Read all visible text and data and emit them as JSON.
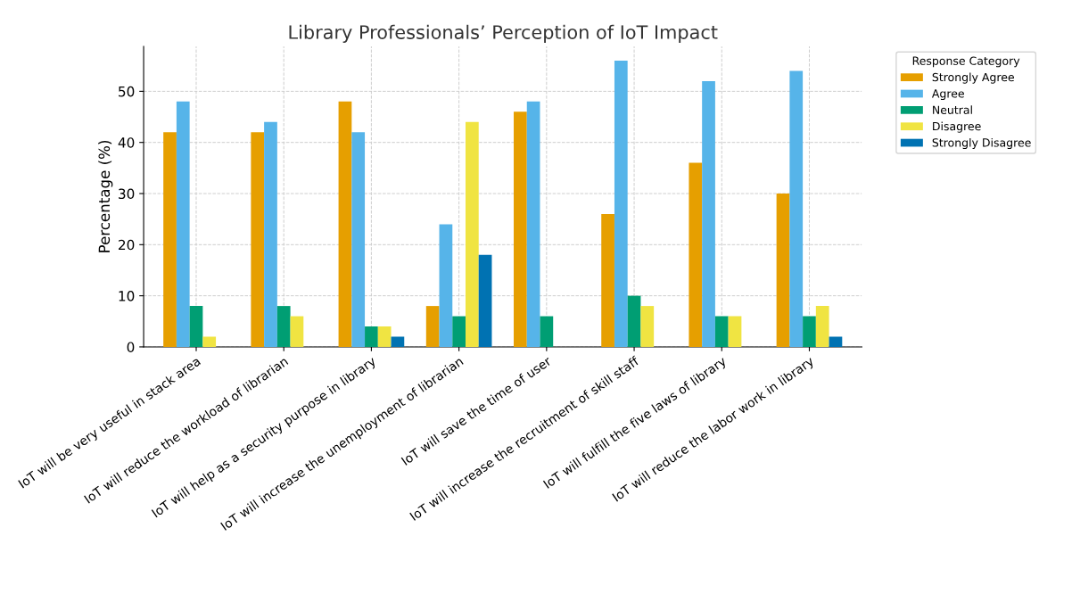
{
  "chart_data": {
    "type": "bar",
    "title": "Library Professionals’ Perception of IoT Impact",
    "ylabel": "Percentage (%)",
    "legend_title": "Response Category",
    "categories": [
      "IoT will be very useful in stack area",
      "IoT will reduce the workload of librarian",
      "IoT will help as a security purpose in library",
      "IoT will increase the unemployment of librarian",
      "IoT will save the time of user",
      "IoT will increase the recruitment of skill staff",
      "IoT will fulfill the five laws of library",
      "IoT will reduce the labor work in library"
    ],
    "series": [
      {
        "name": "Strongly Agree",
        "color": "#e69f00",
        "values": [
          42,
          42,
          48,
          8,
          46,
          26,
          36,
          30
        ]
      },
      {
        "name": "Agree",
        "color": "#56b4e9",
        "values": [
          48,
          44,
          42,
          24,
          48,
          56,
          52,
          54
        ]
      },
      {
        "name": "Neutral",
        "color": "#009e73",
        "values": [
          8,
          8,
          4,
          6,
          6,
          10,
          6,
          6
        ]
      },
      {
        "name": "Disagree",
        "color": "#f0e442",
        "values": [
          2,
          6,
          4,
          44,
          null,
          8,
          6,
          8
        ]
      },
      {
        "name": "Strongly Disagree",
        "color": "#0072b2",
        "values": [
          null,
          null,
          2,
          18,
          null,
          null,
          null,
          2
        ]
      }
    ],
    "ylim": [
      0,
      58.8
    ],
    "yticks": [
      0,
      10,
      20,
      30,
      40,
      50
    ],
    "grid": true,
    "legend": "top right"
  }
}
